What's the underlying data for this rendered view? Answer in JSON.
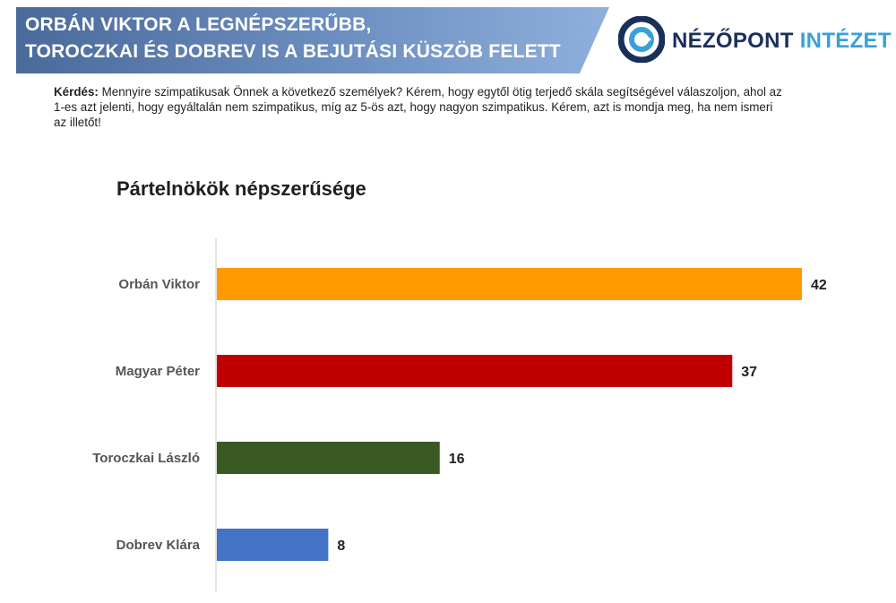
{
  "header": {
    "title_line1": "ORBÁN VIKTOR A LEGNÉPSZERŰBB,",
    "title_line2": "TOROCZKAI ÉS DOBREV IS A BEJUTÁSI KÜSZÖB FELETT"
  },
  "logo": {
    "icon": "nezopont-logo-icon",
    "text_part1": "NÉZŐPONT",
    "text_part2": "INTÉZET"
  },
  "question": {
    "label": "Kérdés:",
    "text": " Mennyire szimpatikusak Önnek a következő személyek? Kérem, hogy egytől ötig terjedő skála segítségével válaszoljon, ahol az 1-es azt jelenti, hogy egyáltalán nem szimpatikus, míg az 5-ös azt, hogy nagyon szimpatikus. Kérem, azt is mondja meg, ha nem ismeri az illetőt!"
  },
  "chart_data": {
    "type": "bar",
    "orientation": "horizontal",
    "title": "Pártelnökök népszerűsége",
    "categories": [
      "Orbán Viktor",
      "Magyar Péter",
      "Toroczkai László",
      "Dobrev Klára"
    ],
    "values": [
      42,
      37,
      16,
      8
    ],
    "colors": [
      "#ff9900",
      "#c00000",
      "#3a5a24",
      "#4472c4"
    ],
    "xlim": [
      0,
      42
    ],
    "xlabel": "",
    "ylabel": "",
    "grid": false,
    "legend": "none"
  }
}
